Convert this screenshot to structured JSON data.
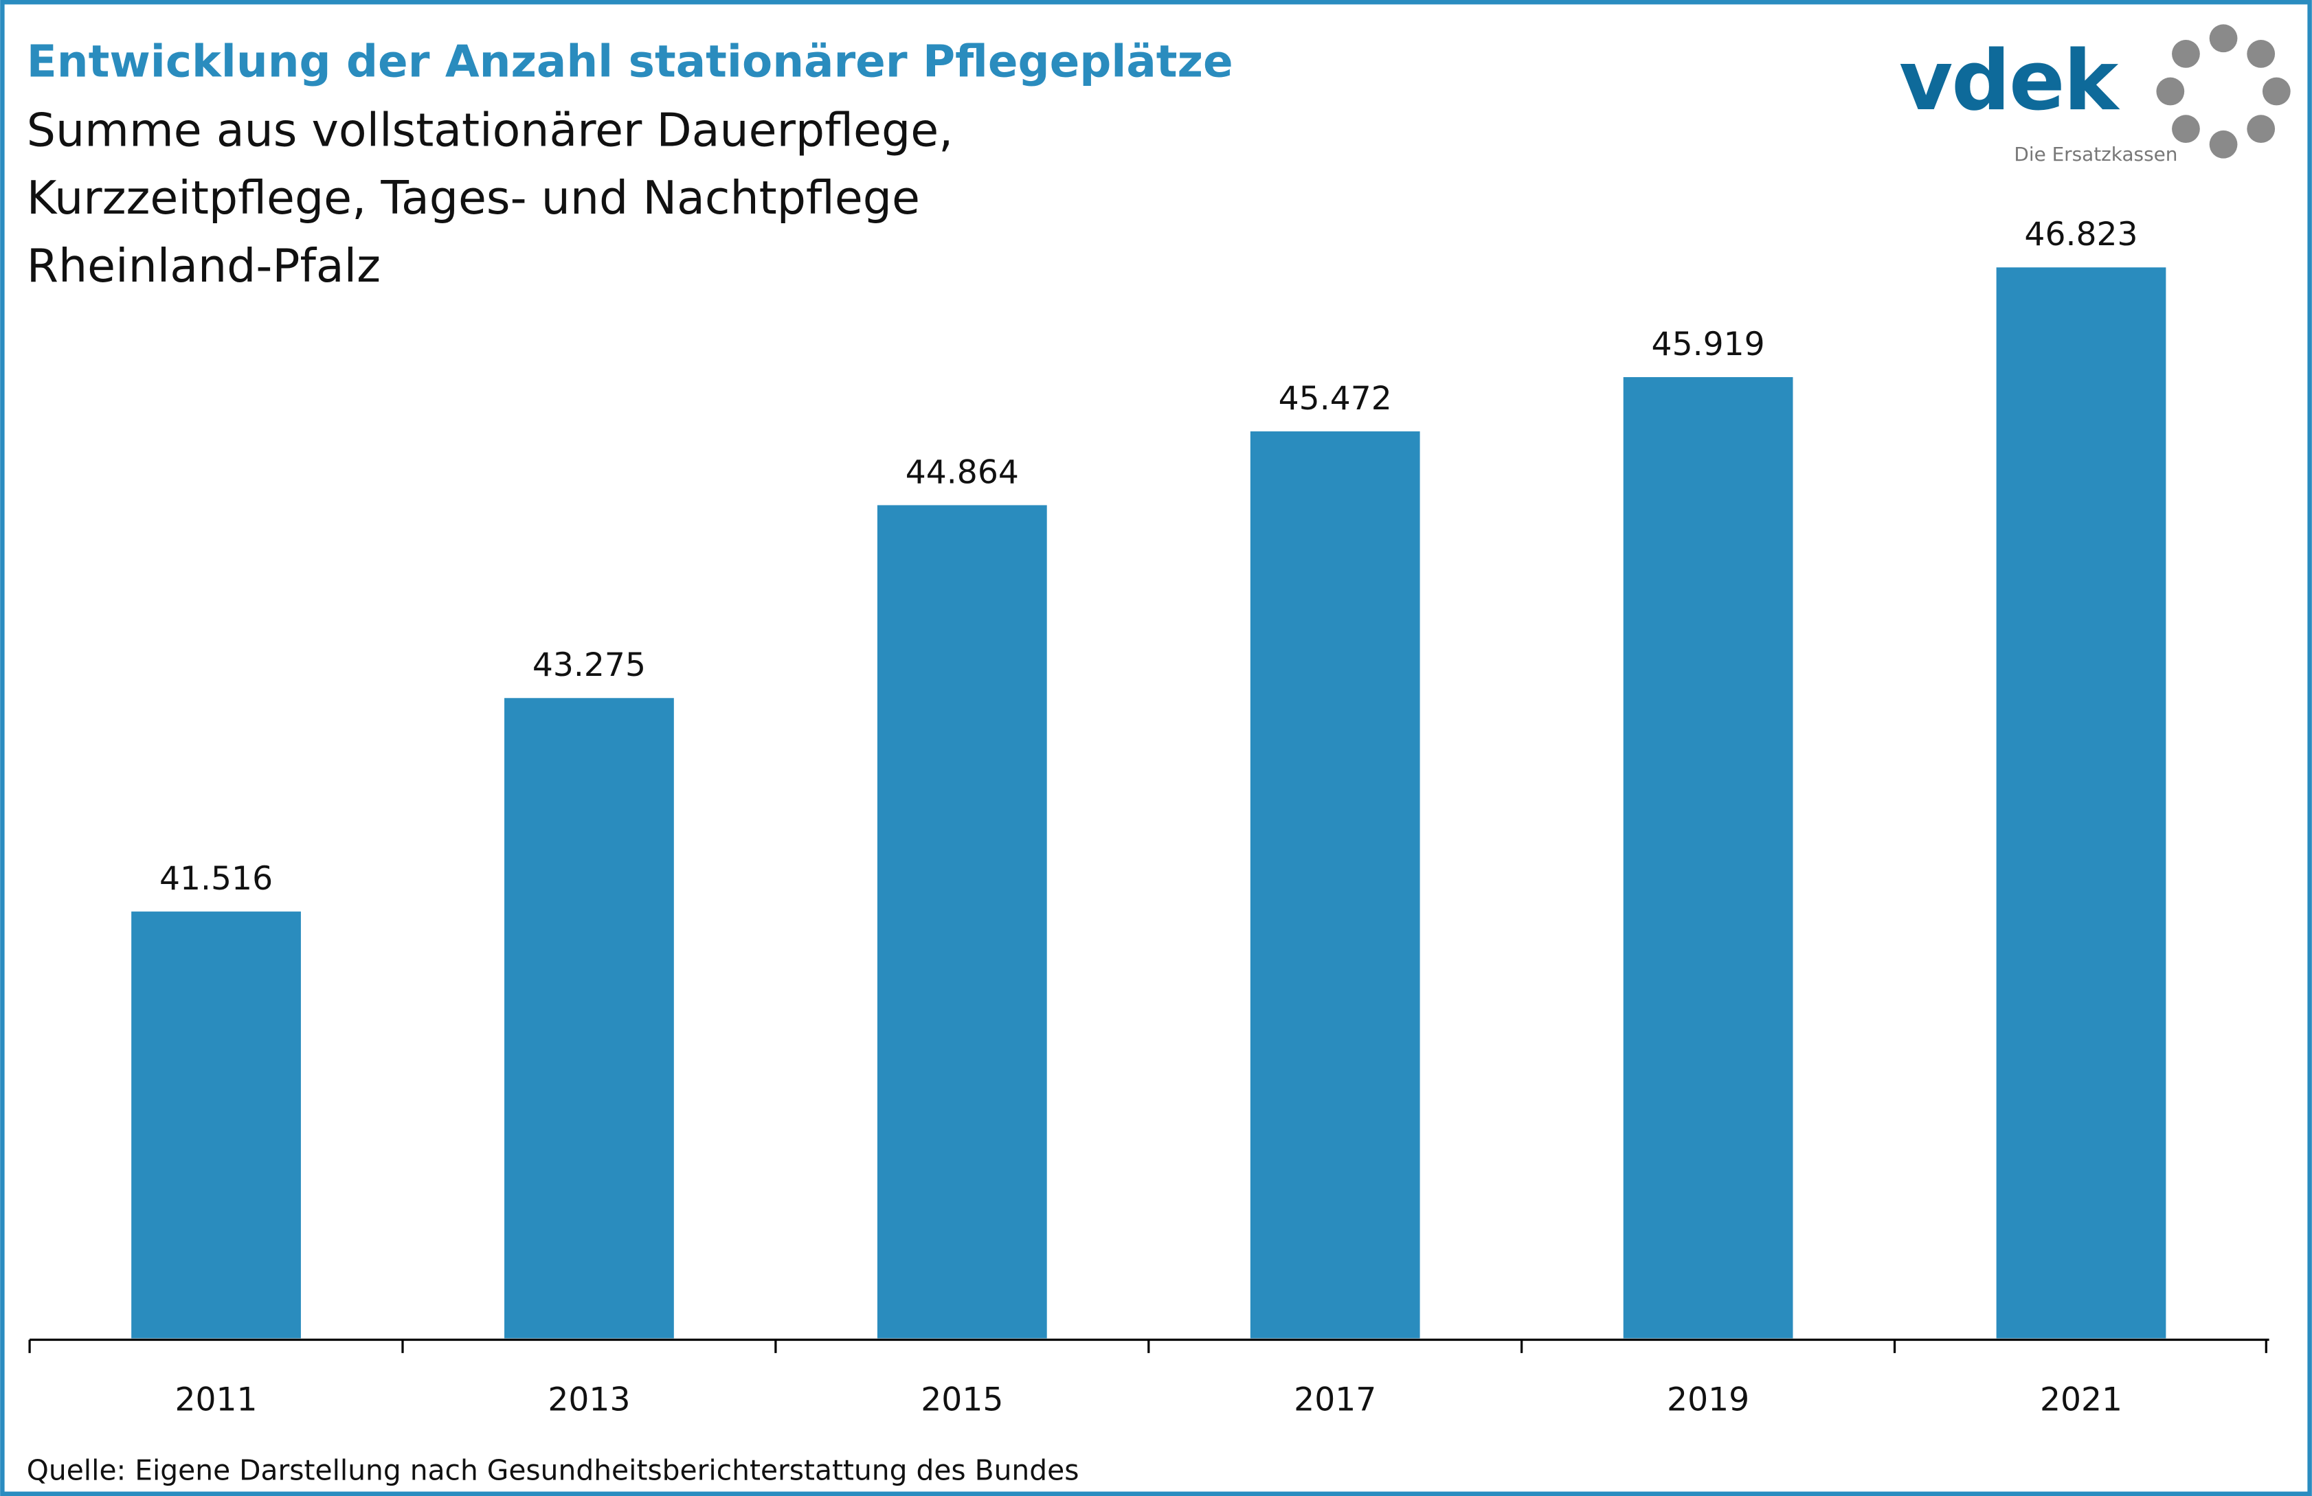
{
  "header": {
    "title": "Entwicklung der Anzahl stationärer Pflegeplätze",
    "subtitle_lines": [
      "Summe aus vollstationärer Dauerpflege,",
      "Kurzzeitpflege, Tages- und Nachtpflege",
      "Rheinland-Pfalz"
    ]
  },
  "logo": {
    "wordmark": "vdek",
    "tagline": "Die Ersatzkassen"
  },
  "source": "Quelle: Eigene Darstellung nach Gesundheitsberichterstattung des Bundes",
  "colors": {
    "bar": "#2a8cbe",
    "title": "#2a8cbe",
    "border": "#2a8cc0",
    "logo_blue": "#0e6a9a",
    "logo_grey": "#8a8a8a"
  },
  "chart_data": {
    "type": "bar",
    "title": "Entwicklung der Anzahl stationärer Pflegeplätze",
    "categories": [
      "2011",
      "2013",
      "2015",
      "2017",
      "2019",
      "2021"
    ],
    "values": [
      41516,
      43275,
      44864,
      45472,
      45919,
      46823
    ],
    "value_labels": [
      "41.516",
      "43.275",
      "44.864",
      "45.472",
      "45.919",
      "46.823"
    ],
    "xlabel": "",
    "ylabel": "",
    "ylim": [
      38000,
      47500
    ],
    "grid": false,
    "legend": "none"
  }
}
